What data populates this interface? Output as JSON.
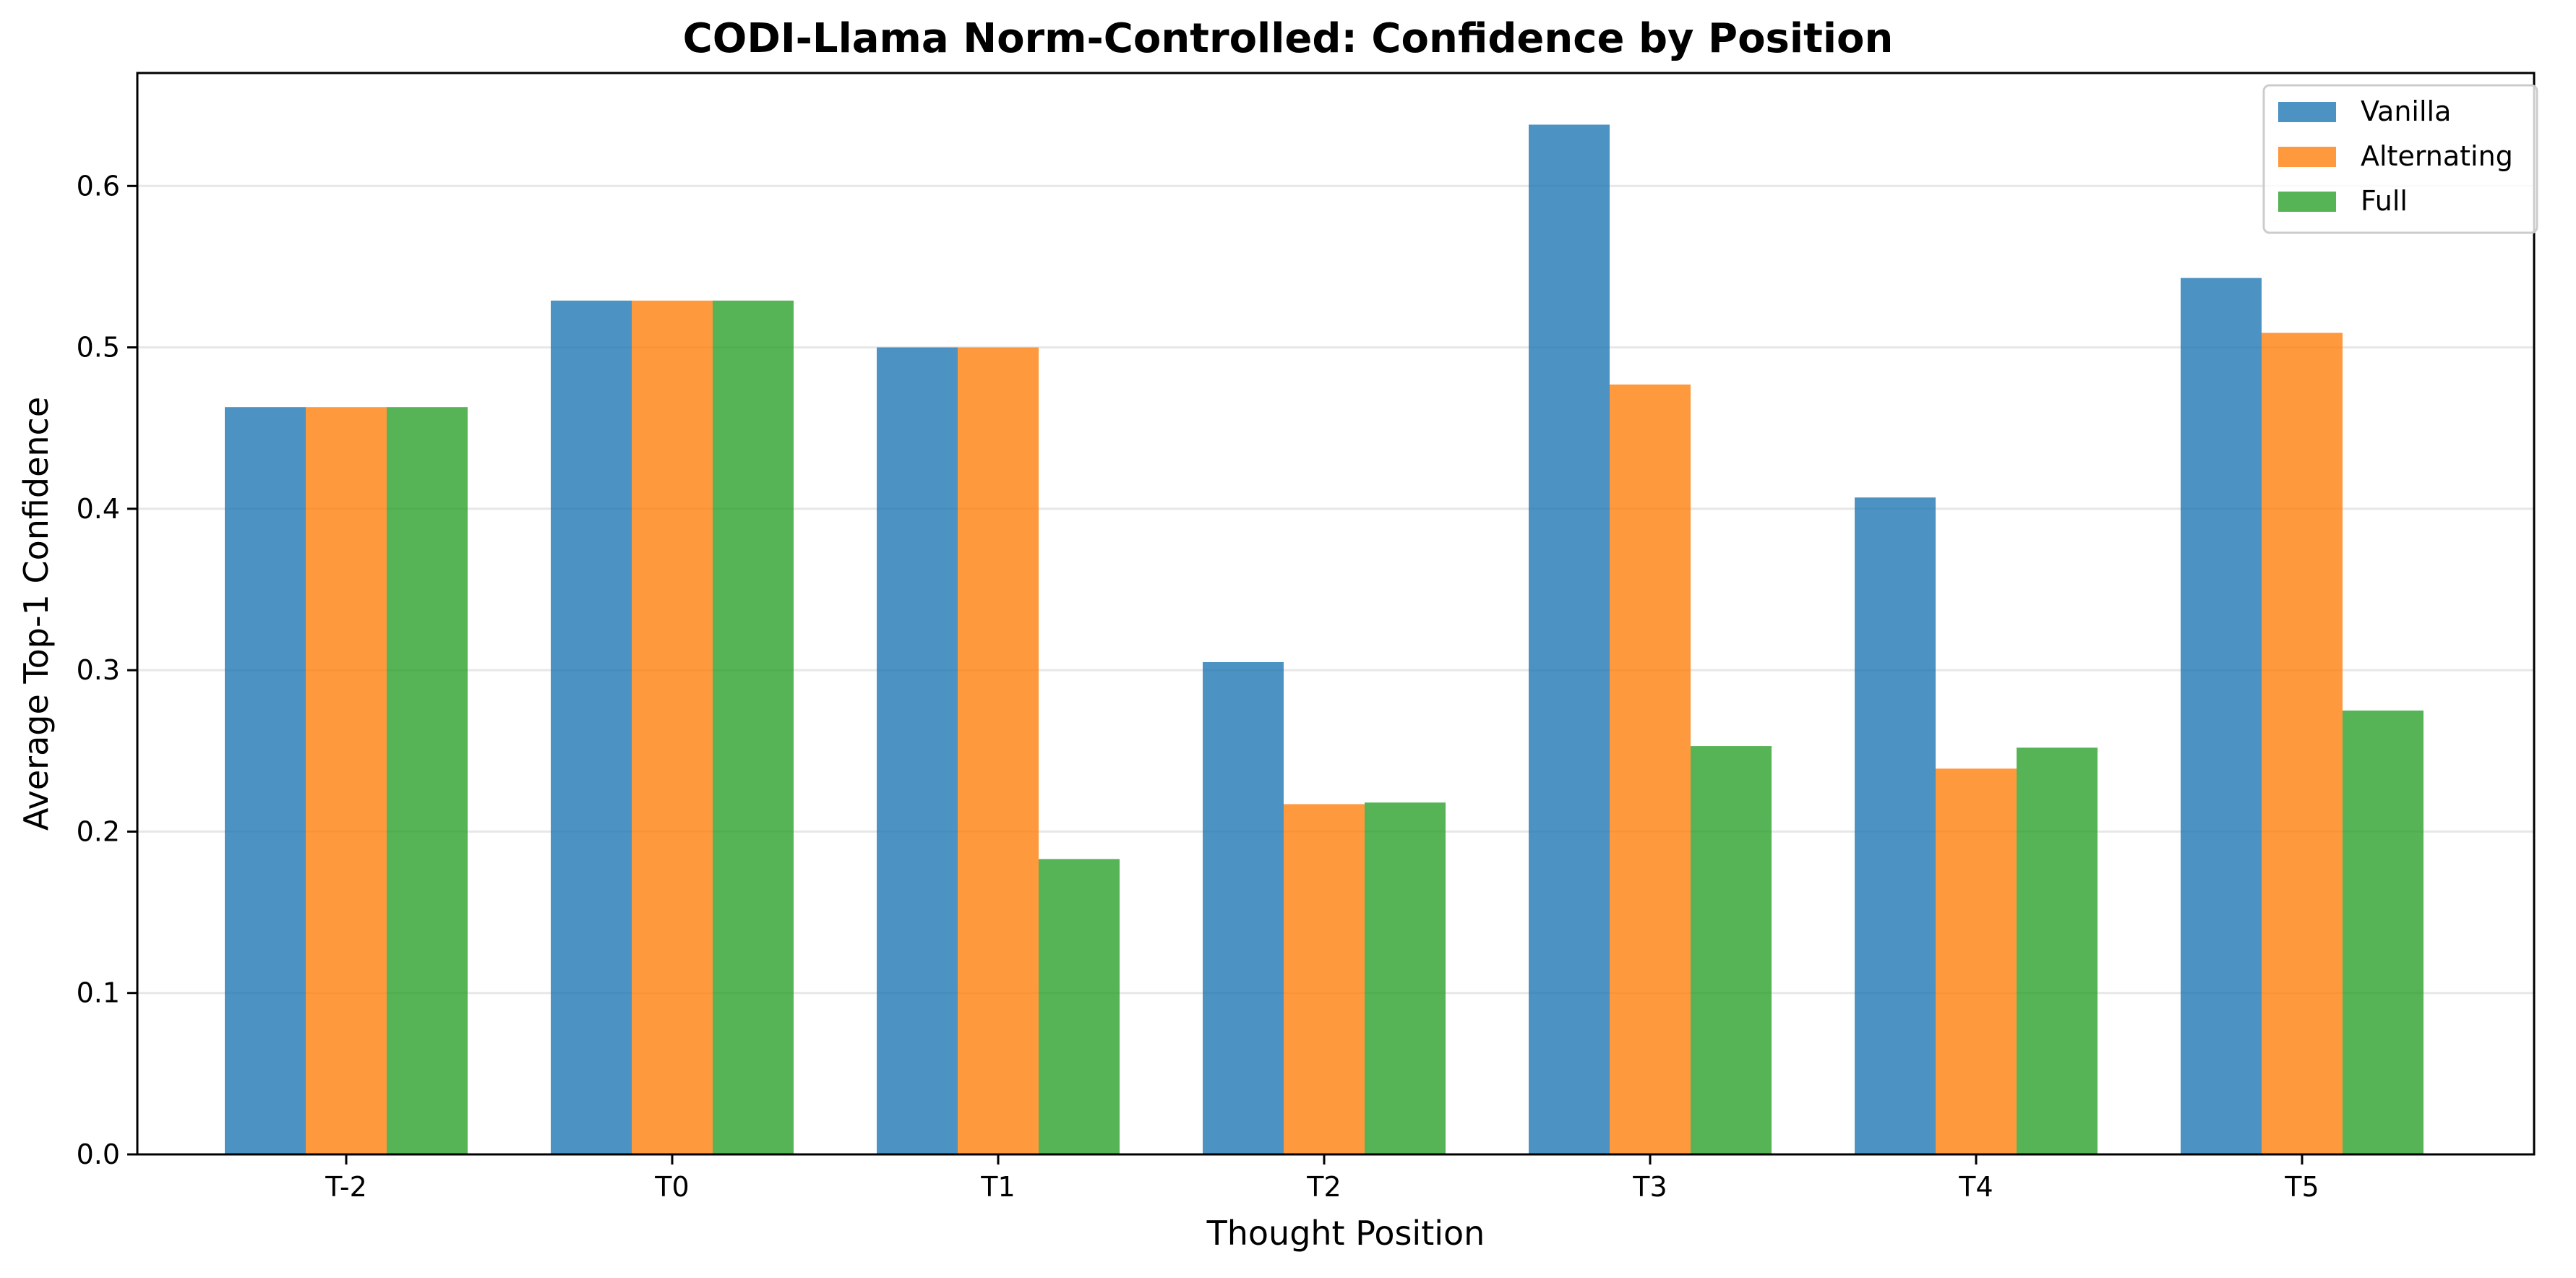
{
  "chart_data": {
    "type": "bar",
    "title": "CODI-Llama Norm-Controlled: Confidence by Position",
    "xlabel": "Thought Position",
    "ylabel": "Average Top-1 Confidence",
    "categories": [
      "T-2",
      "T0",
      "T1",
      "T2",
      "T3",
      "T4",
      "T5"
    ],
    "series": [
      {
        "name": "Vanilla",
        "color": "#1f77b4",
        "values": [
          0.463,
          0.529,
          0.5,
          0.305,
          0.638,
          0.407,
          0.543
        ]
      },
      {
        "name": "Alternating",
        "color": "#ff7f0e",
        "values": [
          0.463,
          0.529,
          0.5,
          0.217,
          0.477,
          0.239,
          0.509
        ]
      },
      {
        "name": "Full",
        "color": "#2ca02c",
        "values": [
          0.463,
          0.529,
          0.183,
          0.218,
          0.253,
          0.252,
          0.275
        ]
      }
    ],
    "ylim": [
      0,
      0.67
    ],
    "yticks": [
      "0.0",
      "0.1",
      "0.2",
      "0.3",
      "0.4",
      "0.5",
      "0.6"
    ],
    "grid": "horizontal",
    "legend_position": "top-right",
    "bar_opacity": 0.8
  }
}
